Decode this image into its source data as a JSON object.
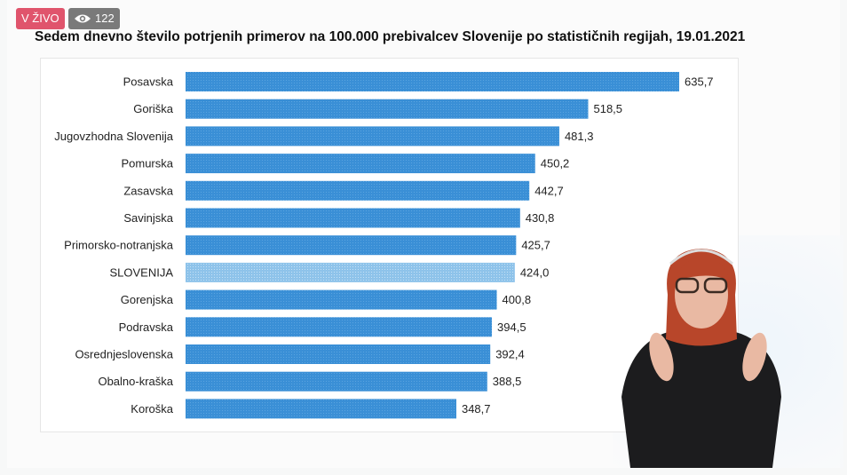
{
  "badges": {
    "live": "V ŽIVO",
    "views": "122"
  },
  "colors": {
    "bar": "#3a8fd6",
    "bar_highlight": "#8ec3ea"
  },
  "chart_data": {
    "type": "bar",
    "orientation": "horizontal",
    "title": "Sedem dnevno število potrjenih primerov na 100.000 prebivalcev Slovenije po statističnih regijah, 19.01.2021",
    "categories": [
      "Posavska",
      "Goriška",
      "Jugovzhodna Slovenija",
      "Pomurska",
      "Zasavska",
      "Savinjska",
      "Primorsko-notranjska",
      "SLOVENIJA",
      "Gorenjska",
      "Podravska",
      "Osrednjeslovenska",
      "Obalno-kraška",
      "Koroška"
    ],
    "values": [
      635.7,
      518.5,
      481.3,
      450.2,
      442.7,
      430.8,
      425.7,
      424.0,
      400.8,
      394.5,
      392.4,
      388.5,
      348.7
    ],
    "labels": [
      "635,7",
      "518,5",
      "481,3",
      "450,2",
      "442,7",
      "430,8",
      "425,7",
      "424,0",
      "400,8",
      "394,5",
      "392,4",
      "388,5",
      "348,7"
    ],
    "highlight": "SLOVENIJA",
    "xlim": [
      0,
      650
    ],
    "grid": false,
    "legend": "none"
  }
}
